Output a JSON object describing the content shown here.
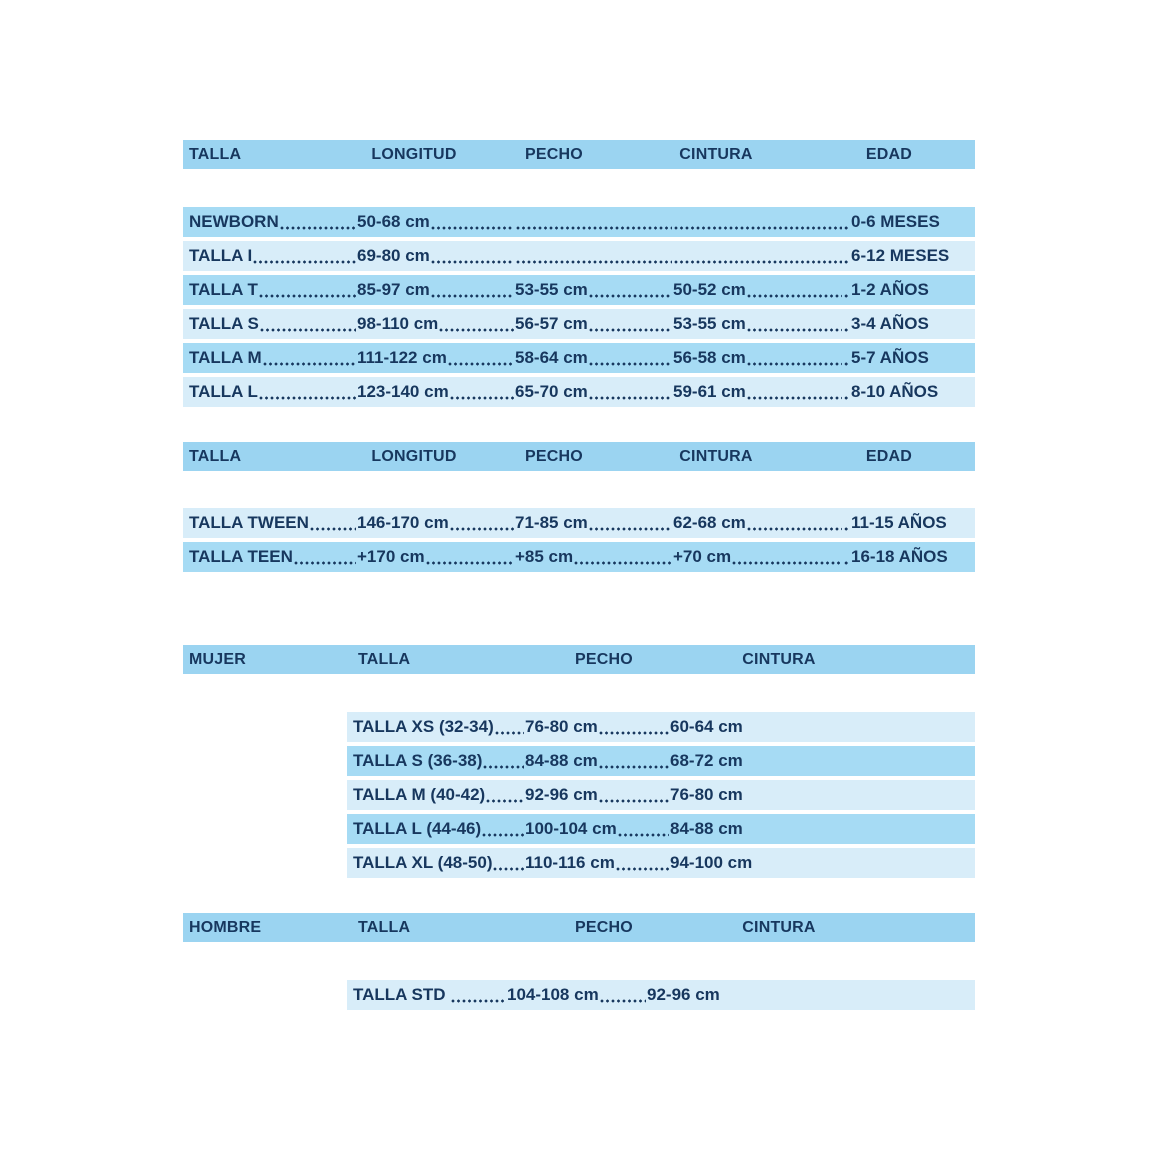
{
  "colors": {
    "header_bg": "#9bd4f1",
    "row_dark": "#a6dbf4",
    "row_light": "#d8edf9",
    "text": "#17375e"
  },
  "tables": [
    {
      "name": "kids-sizes",
      "headers": [
        "TALLA",
        "LONGITUD",
        "PECHO",
        "CINTURA",
        "EDAD"
      ],
      "rows": [
        {
          "shade": "dark",
          "cells": [
            "NEWBORN",
            "50-68 cm",
            "",
            "",
            "0-6 MESES"
          ]
        },
        {
          "shade": "light",
          "cells": [
            "TALLA I",
            "69-80 cm",
            "",
            "",
            "6-12 MESES"
          ]
        },
        {
          "shade": "dark",
          "cells": [
            "TALLA T",
            "85-97 cm",
            "53-55 cm",
            "50-52 cm",
            "1-2 AÑOS"
          ]
        },
        {
          "shade": "light",
          "cells": [
            "TALLA S",
            "98-110 cm",
            "56-57 cm",
            "53-55 cm",
            "3-4 AÑOS"
          ]
        },
        {
          "shade": "dark",
          "cells": [
            "TALLA M",
            "111-122 cm",
            "58-64 cm",
            "56-58 cm",
            "5-7 AÑOS"
          ]
        },
        {
          "shade": "light",
          "cells": [
            "TALLA L",
            "123-140 cm",
            "65-70 cm",
            "59-61 cm",
            "8-10 AÑOS"
          ]
        }
      ]
    },
    {
      "name": "tween-teen-sizes",
      "headers": [
        "TALLA",
        "LONGITUD",
        "PECHO",
        "CINTURA",
        "EDAD"
      ],
      "rows": [
        {
          "shade": "light",
          "cells": [
            "TALLA TWEEN",
            "146-170 cm",
            "71-85 cm",
            "62-68 cm",
            "11-15 AÑOS"
          ]
        },
        {
          "shade": "dark",
          "cells": [
            "TALLA TEEN",
            "+170 cm",
            "+85 cm",
            "+70 cm",
            "16-18 AÑOS"
          ]
        }
      ]
    },
    {
      "name": "women-sizes",
      "headers": [
        "MUJER",
        "TALLA",
        "PECHO",
        "CINTURA"
      ],
      "rows": [
        {
          "shade": "light",
          "cells": [
            "TALLA XS (32-34)",
            "76-80 cm",
            "60-64 cm"
          ]
        },
        {
          "shade": "dark",
          "cells": [
            "TALLA S (36-38)",
            "84-88 cm",
            "68-72 cm"
          ]
        },
        {
          "shade": "light",
          "cells": [
            "TALLA M (40-42)",
            "92-96 cm",
            "76-80 cm"
          ]
        },
        {
          "shade": "dark",
          "cells": [
            "TALLA L (44-46)",
            "100-104 cm",
            "84-88 cm"
          ]
        },
        {
          "shade": "light",
          "cells": [
            "TALLA XL (48-50)",
            "110-116 cm",
            "94-100 cm"
          ]
        }
      ]
    },
    {
      "name": "men-sizes",
      "headers": [
        "HOMBRE",
        "TALLA",
        "PECHO",
        "CINTURA"
      ],
      "rows": [
        {
          "shade": "light",
          "cells": [
            "TALLA STD ",
            "104-108 cm",
            "92-96 cm"
          ]
        }
      ]
    }
  ]
}
